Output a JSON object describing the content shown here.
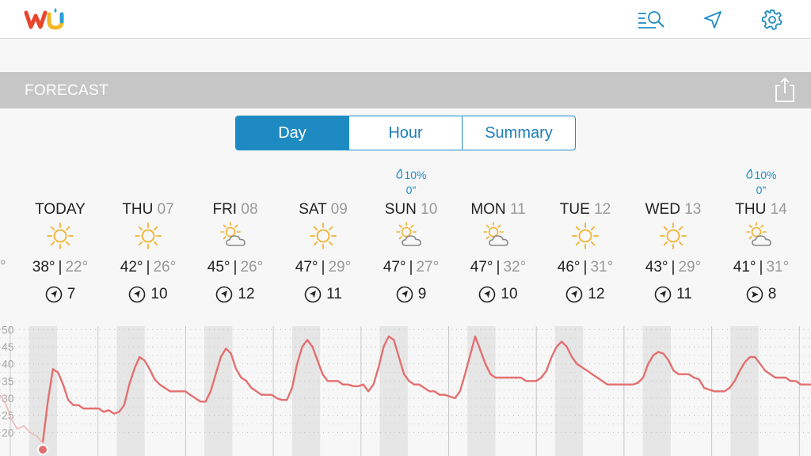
{
  "app": {
    "logo_text": "wu"
  },
  "topbar": {
    "icons": [
      "search-list-icon",
      "location-arrow-icon",
      "gear-icon"
    ]
  },
  "forecast": {
    "title": "FORECAST",
    "share_icon": "share-icon"
  },
  "tabs": [
    {
      "label": "Day",
      "active": true
    },
    {
      "label": "Hour",
      "active": false
    },
    {
      "label": "Summary",
      "active": false
    }
  ],
  "edge_temp": "°",
  "days": [
    {
      "name": "TODAY",
      "date": "",
      "icon": "sun",
      "hi": "38°",
      "lo": "22°",
      "wind": "7",
      "wind_icon": "wind-arrow-icon",
      "precip_pct": "",
      "precip_amt": ""
    },
    {
      "name": "THU",
      "date": "07",
      "icon": "sun",
      "hi": "42°",
      "lo": "26°",
      "wind": "10",
      "wind_icon": "wind-arrow-icon",
      "precip_pct": "",
      "precip_amt": ""
    },
    {
      "name": "FRI",
      "date": "08",
      "icon": "partly-cloudy",
      "hi": "45°",
      "lo": "26°",
      "wind": "12",
      "wind_icon": "wind-arrow-icon",
      "precip_pct": "",
      "precip_amt": ""
    },
    {
      "name": "SAT",
      "date": "09",
      "icon": "sun",
      "hi": "47°",
      "lo": "29°",
      "wind": "11",
      "wind_icon": "wind-arrow-icon",
      "precip_pct": "",
      "precip_amt": ""
    },
    {
      "name": "SUN",
      "date": "10",
      "icon": "partly-cloudy",
      "hi": "47°",
      "lo": "27°",
      "wind": "9",
      "wind_icon": "wind-arrow-icon",
      "precip_pct": "10%",
      "precip_amt": "0\""
    },
    {
      "name": "MON",
      "date": "11",
      "icon": "partly-cloudy",
      "hi": "47°",
      "lo": "32°",
      "wind": "10",
      "wind_icon": "wind-arrow-icon",
      "precip_pct": "",
      "precip_amt": ""
    },
    {
      "name": "TUE",
      "date": "12",
      "icon": "sun",
      "hi": "46°",
      "lo": "31°",
      "wind": "12",
      "wind_icon": "wind-arrow-icon",
      "precip_pct": "",
      "precip_amt": ""
    },
    {
      "name": "WED",
      "date": "13",
      "icon": "sun",
      "hi": "43°",
      "lo": "29°",
      "wind": "11",
      "wind_icon": "wind-arrow-icon",
      "precip_pct": "",
      "precip_amt": ""
    },
    {
      "name": "THU",
      "date": "14",
      "icon": "partly-cloudy",
      "hi": "41°",
      "lo": "31°",
      "wind": "8",
      "wind_icon": "wind-east-icon",
      "precip_pct": "10%",
      "precip_amt": "0\""
    }
  ],
  "chart_data": {
    "type": "line",
    "y_ticks": [
      "50",
      "45",
      "40",
      "35",
      "30",
      "25",
      "20"
    ],
    "ylim": [
      15,
      51
    ],
    "grid": true,
    "series": [
      {
        "color": "#e46f6f",
        "values": [
          17,
          29,
          38.5,
          37.5,
          34,
          29.5,
          28,
          28,
          27,
          27,
          27,
          27,
          26,
          26.5,
          25.5,
          26,
          28,
          34,
          38.5,
          42,
          41,
          38.5,
          35.5,
          34,
          33,
          32,
          32,
          32,
          32,
          31,
          30,
          29,
          29,
          32,
          37,
          42,
          44.5,
          43,
          38.5,
          36,
          35,
          33,
          32,
          31,
          31,
          31,
          30,
          29.5,
          29.5,
          33,
          40,
          45,
          47,
          45,
          41,
          37,
          35,
          35,
          35,
          34,
          34,
          33.5,
          33.5,
          34,
          32,
          34,
          39,
          45,
          48,
          47,
          42,
          37,
          35,
          34,
          34,
          33,
          32,
          32,
          31,
          31,
          30.5,
          30,
          32,
          37,
          42.5,
          48,
          44,
          40,
          37,
          36,
          36,
          36,
          36,
          36,
          36,
          35,
          35,
          35,
          36,
          38,
          42,
          45,
          46.5,
          45,
          42,
          40,
          39,
          38,
          37,
          36,
          35,
          34,
          34,
          34,
          34,
          34,
          34,
          34.5,
          36,
          40,
          42.5,
          43.5,
          43,
          41,
          38,
          37,
          37,
          37,
          36,
          35.5,
          33,
          32.5,
          32,
          32,
          32,
          33,
          35,
          38,
          40.5,
          42,
          42,
          40,
          38,
          37,
          36,
          36,
          36,
          35,
          35,
          34,
          34,
          34
        ]
      }
    ],
    "marker": {
      "value": 15,
      "color": "#e46f6f"
    }
  }
}
